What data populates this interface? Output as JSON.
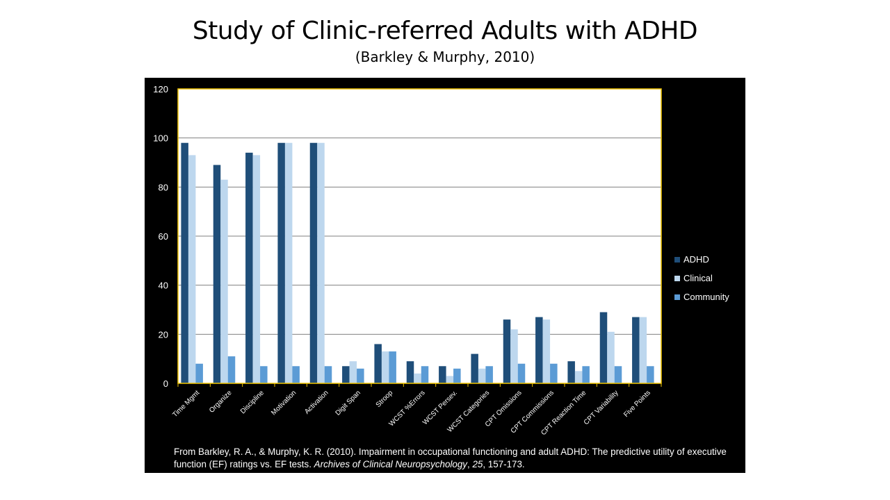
{
  "slide": {
    "title": "Study of Clinic-referred Adults with ADHD",
    "subtitle": "(Barkley & Murphy, 2010)"
  },
  "citation": {
    "part1": "From Barkley, R. A., & Murphy, K. R. (2010).  Impairment in occupational functioning and adult ADHD: The predictive utility of executive function (EF) ratings vs. EF tests.  ",
    "journal": "Archives of Clinical Neuropsychology",
    "sep": ", ",
    "volume": "25",
    "pages": ", 157-173."
  },
  "colors": {
    "panel_bg": "#000000",
    "plot_bg": "#ffffff",
    "plot_border": "#f0c400",
    "gridline": "#7f7f7f",
    "text": "#ffffff"
  },
  "chart_data": {
    "type": "bar",
    "title": "",
    "xlabel": "",
    "ylabel": "",
    "ylim": [
      0,
      120
    ],
    "yticks": [
      0,
      20,
      40,
      60,
      80,
      100,
      120
    ],
    "grid": true,
    "legend_position": "right",
    "categories": [
      "Time Mgmt",
      "Organize",
      "Discipline",
      "Motivation",
      "Activation",
      "Digit Span",
      "Stroop",
      "WCST %Errors",
      "WCST Persev.",
      "WCST Categories",
      "CPT Omissions",
      "CPT Commissions",
      "CPT Reaction Time",
      "CPT Variability",
      "Five Points"
    ],
    "series": [
      {
        "name": "ADHD",
        "color": "#1f4e79",
        "values": [
          98,
          89,
          94,
          98,
          98,
          7,
          16,
          9,
          7,
          12,
          26,
          27,
          9,
          29,
          27
        ]
      },
      {
        "name": "Clinical",
        "color": "#bdd7ee",
        "values": [
          93,
          83,
          93,
          98,
          98,
          9,
          13,
          4,
          3,
          6,
          22,
          26,
          5,
          21,
          27
        ]
      },
      {
        "name": "Community",
        "color": "#5b9bd5",
        "values": [
          8,
          11,
          7,
          7,
          7,
          6,
          13,
          7,
          6,
          7,
          8,
          8,
          7,
          7,
          7
        ]
      }
    ]
  }
}
